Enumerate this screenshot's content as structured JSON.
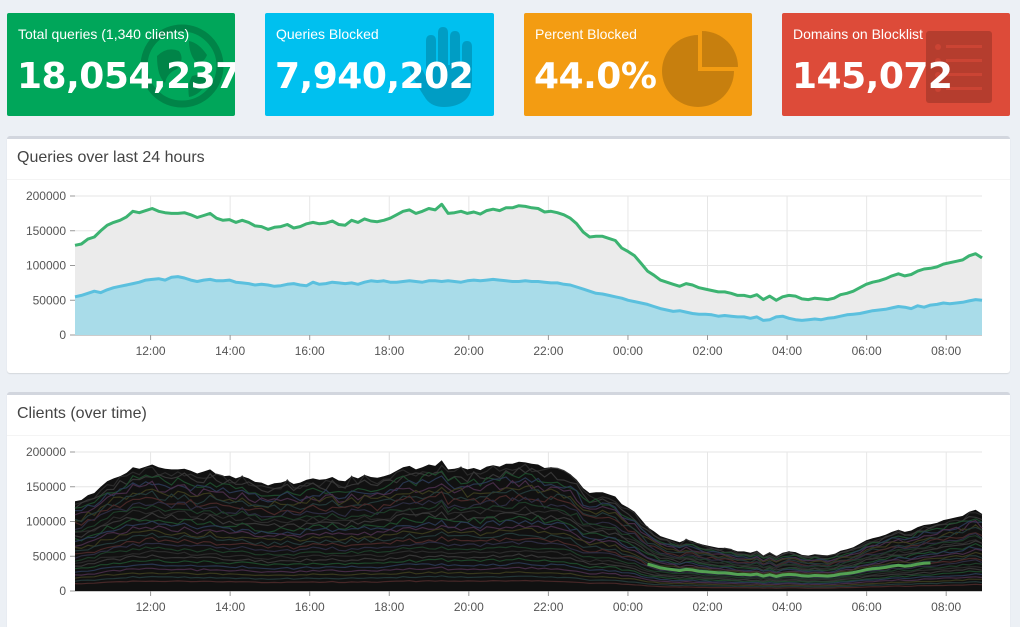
{
  "stats": [
    {
      "label": "Total queries (1,340 clients)",
      "value": "18,054,237",
      "color": "#00a65a",
      "icon": "globe-icon"
    },
    {
      "label": "Queries Blocked",
      "value": "7,940,202",
      "color": "#00c0ef",
      "icon": "hand-icon"
    },
    {
      "label": "Percent Blocked",
      "value": "44.0%",
      "color": "#f39c12",
      "icon": "pie-chart-icon"
    },
    {
      "label": "Domains on Blocklist",
      "value": "145,072",
      "color": "#dd4b39",
      "icon": "list-icon"
    }
  ],
  "panels": {
    "queries_title": "Queries over last 24 hours",
    "clients_title": "Clients (over time)"
  },
  "chart_data": [
    {
      "type": "area",
      "title": "Queries over last 24 hours",
      "y_ticks": [
        "200000",
        "150000",
        "100000",
        "50000",
        "0"
      ],
      "x_ticks": [
        "12:00",
        "14:00",
        "16:00",
        "18:00",
        "20:00",
        "22:00",
        "00:00",
        "02:00",
        "04:00",
        "06:00",
        "08:00"
      ],
      "ylim": [
        0,
        200000
      ],
      "x_hours_start": 10.1,
      "x_hours_end": 32.9,
      "grid": true,
      "series": [
        {
          "color": "#3cb371",
          "fill": "#ebebeb",
          "values": [
            129000,
            131000,
            138000,
            141000,
            150000,
            158000,
            162000,
            165000,
            170000,
            178000,
            176000,
            179000,
            182000,
            178000,
            176000,
            175000,
            175000,
            176000,
            173000,
            169000,
            172000,
            175000,
            168000,
            165000,
            166000,
            162000,
            165000,
            162000,
            157000,
            156000,
            152000,
            155000,
            156000,
            159000,
            154000,
            156000,
            160000,
            162000,
            160000,
            161000,
            164000,
            159000,
            158000,
            165000,
            162000,
            167000,
            164000,
            163000,
            165000,
            168000,
            173000,
            178000,
            180000,
            175000,
            178000,
            182000,
            180000,
            188000,
            175000,
            176000,
            178000,
            175000,
            177000,
            174000,
            179000,
            181000,
            179000,
            183000,
            183000,
            186000,
            185000,
            183000,
            182000,
            177000,
            178000,
            176000,
            173000,
            168000,
            160000,
            148000,
            141000,
            142000,
            142000,
            139000,
            136000,
            125000,
            120000,
            114000,
            103000,
            92000,
            86000,
            79000,
            76000,
            73000,
            70000,
            74000,
            72000,
            68000,
            66000,
            64000,
            62000,
            62000,
            60000,
            57000,
            57000,
            55000,
            58000,
            51000,
            56000,
            50000,
            55000,
            57000,
            56000,
            52000,
            51000,
            53000,
            52000,
            51000,
            53000,
            58000,
            60000,
            63000,
            68000,
            73000,
            76000,
            78000,
            81000,
            85000,
            88000,
            85000,
            87000,
            92000,
            95000,
            96000,
            98000,
            102000,
            104000,
            106000,
            108000,
            114000,
            117000,
            111000
          ]
        },
        {
          "color": "#5bc0de",
          "fill": "#a9dce9",
          "values": [
            55000,
            57000,
            60000,
            63000,
            61000,
            65000,
            68000,
            70000,
            72000,
            74000,
            76000,
            79000,
            80000,
            81000,
            79000,
            83000,
            84000,
            82000,
            79000,
            77000,
            79000,
            80000,
            78000,
            78000,
            79000,
            76000,
            75000,
            74000,
            72000,
            73000,
            72000,
            70000,
            71000,
            73000,
            74000,
            72000,
            71000,
            76000,
            73000,
            74000,
            76000,
            75000,
            74000,
            75000,
            73000,
            76000,
            78000,
            77000,
            78000,
            76000,
            76000,
            77000,
            78000,
            77000,
            76000,
            78000,
            78000,
            77000,
            78000,
            77000,
            76000,
            78000,
            79000,
            78000,
            79000,
            80000,
            79000,
            78000,
            77000,
            77000,
            78000,
            77000,
            77000,
            76000,
            75000,
            75000,
            73000,
            72000,
            69000,
            66000,
            63000,
            60000,
            59000,
            57000,
            55000,
            53000,
            50000,
            48000,
            46000,
            44000,
            41000,
            38000,
            36000,
            34000,
            35000,
            33000,
            31000,
            30000,
            30000,
            29000,
            27000,
            28000,
            27000,
            26000,
            26000,
            24000,
            26000,
            21000,
            22000,
            26000,
            27000,
            24000,
            22000,
            21000,
            22000,
            23000,
            22000,
            24000,
            25000,
            27000,
            29000,
            30000,
            31000,
            33000,
            35000,
            36000,
            37000,
            39000,
            41000,
            40000,
            38000,
            42000,
            40000,
            43000,
            44000,
            46000,
            45000,
            46000,
            47000,
            49000,
            51000,
            50000
          ]
        }
      ]
    },
    {
      "type": "area",
      "title": "Clients (over time)",
      "stacked": true,
      "series_count": 1340,
      "y_ticks": [
        "200000",
        "150000",
        "100000",
        "50000",
        "0"
      ],
      "x_ticks": [
        "12:00",
        "14:00",
        "16:00",
        "18:00",
        "20:00",
        "22:00",
        "00:00",
        "02:00",
        "04:00",
        "06:00",
        "08:00"
      ],
      "ylim": [
        0,
        200000
      ],
      "grid": true
    }
  ],
  "colors": {
    "grid": "#e6e6e6",
    "axis": "#999999",
    "clients_top": "#111111"
  }
}
